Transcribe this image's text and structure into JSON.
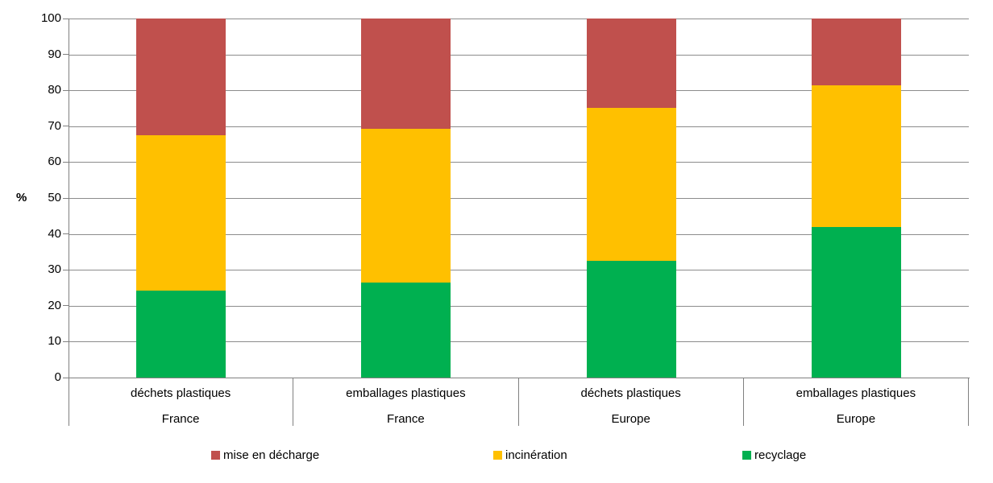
{
  "chart_data": {
    "type": "bar",
    "stacked": true,
    "title": "",
    "xlabel": "",
    "ylabel": "%",
    "ylim": [
      0,
      100
    ],
    "yticks": [
      0,
      10,
      20,
      30,
      40,
      50,
      60,
      70,
      80,
      90,
      100
    ],
    "grid": true,
    "legend_position": "bottom",
    "categories": [
      {
        "line1": "déchets plastiques",
        "line2": "France"
      },
      {
        "line1": "emballages plastiques",
        "line2": "France"
      },
      {
        "line1": "déchets plastiques",
        "line2": "Europe"
      },
      {
        "line1": "emballages plastiques",
        "line2": "Europe"
      }
    ],
    "series": [
      {
        "name": "recyclage",
        "color": "#00B050",
        "values": [
          24.2,
          26.5,
          32.5,
          42.0
        ]
      },
      {
        "name": "incinération",
        "color": "#FFC000",
        "values": [
          43.3,
          42.8,
          42.6,
          39.3
        ]
      },
      {
        "name": "mise en décharge",
        "color": "#C0504D",
        "values": [
          32.5,
          30.7,
          24.9,
          18.7
        ]
      }
    ],
    "legend": [
      {
        "label": "mise en décharge",
        "color": "#C0504D"
      },
      {
        "label": "incinération",
        "color": "#FFC000"
      },
      {
        "label": "recyclage",
        "color": "#00B050"
      }
    ]
  },
  "colors": {
    "background": "#FFFFFF",
    "gridline": "#8C8C8C",
    "axis": "#808080",
    "text": "#000000"
  }
}
